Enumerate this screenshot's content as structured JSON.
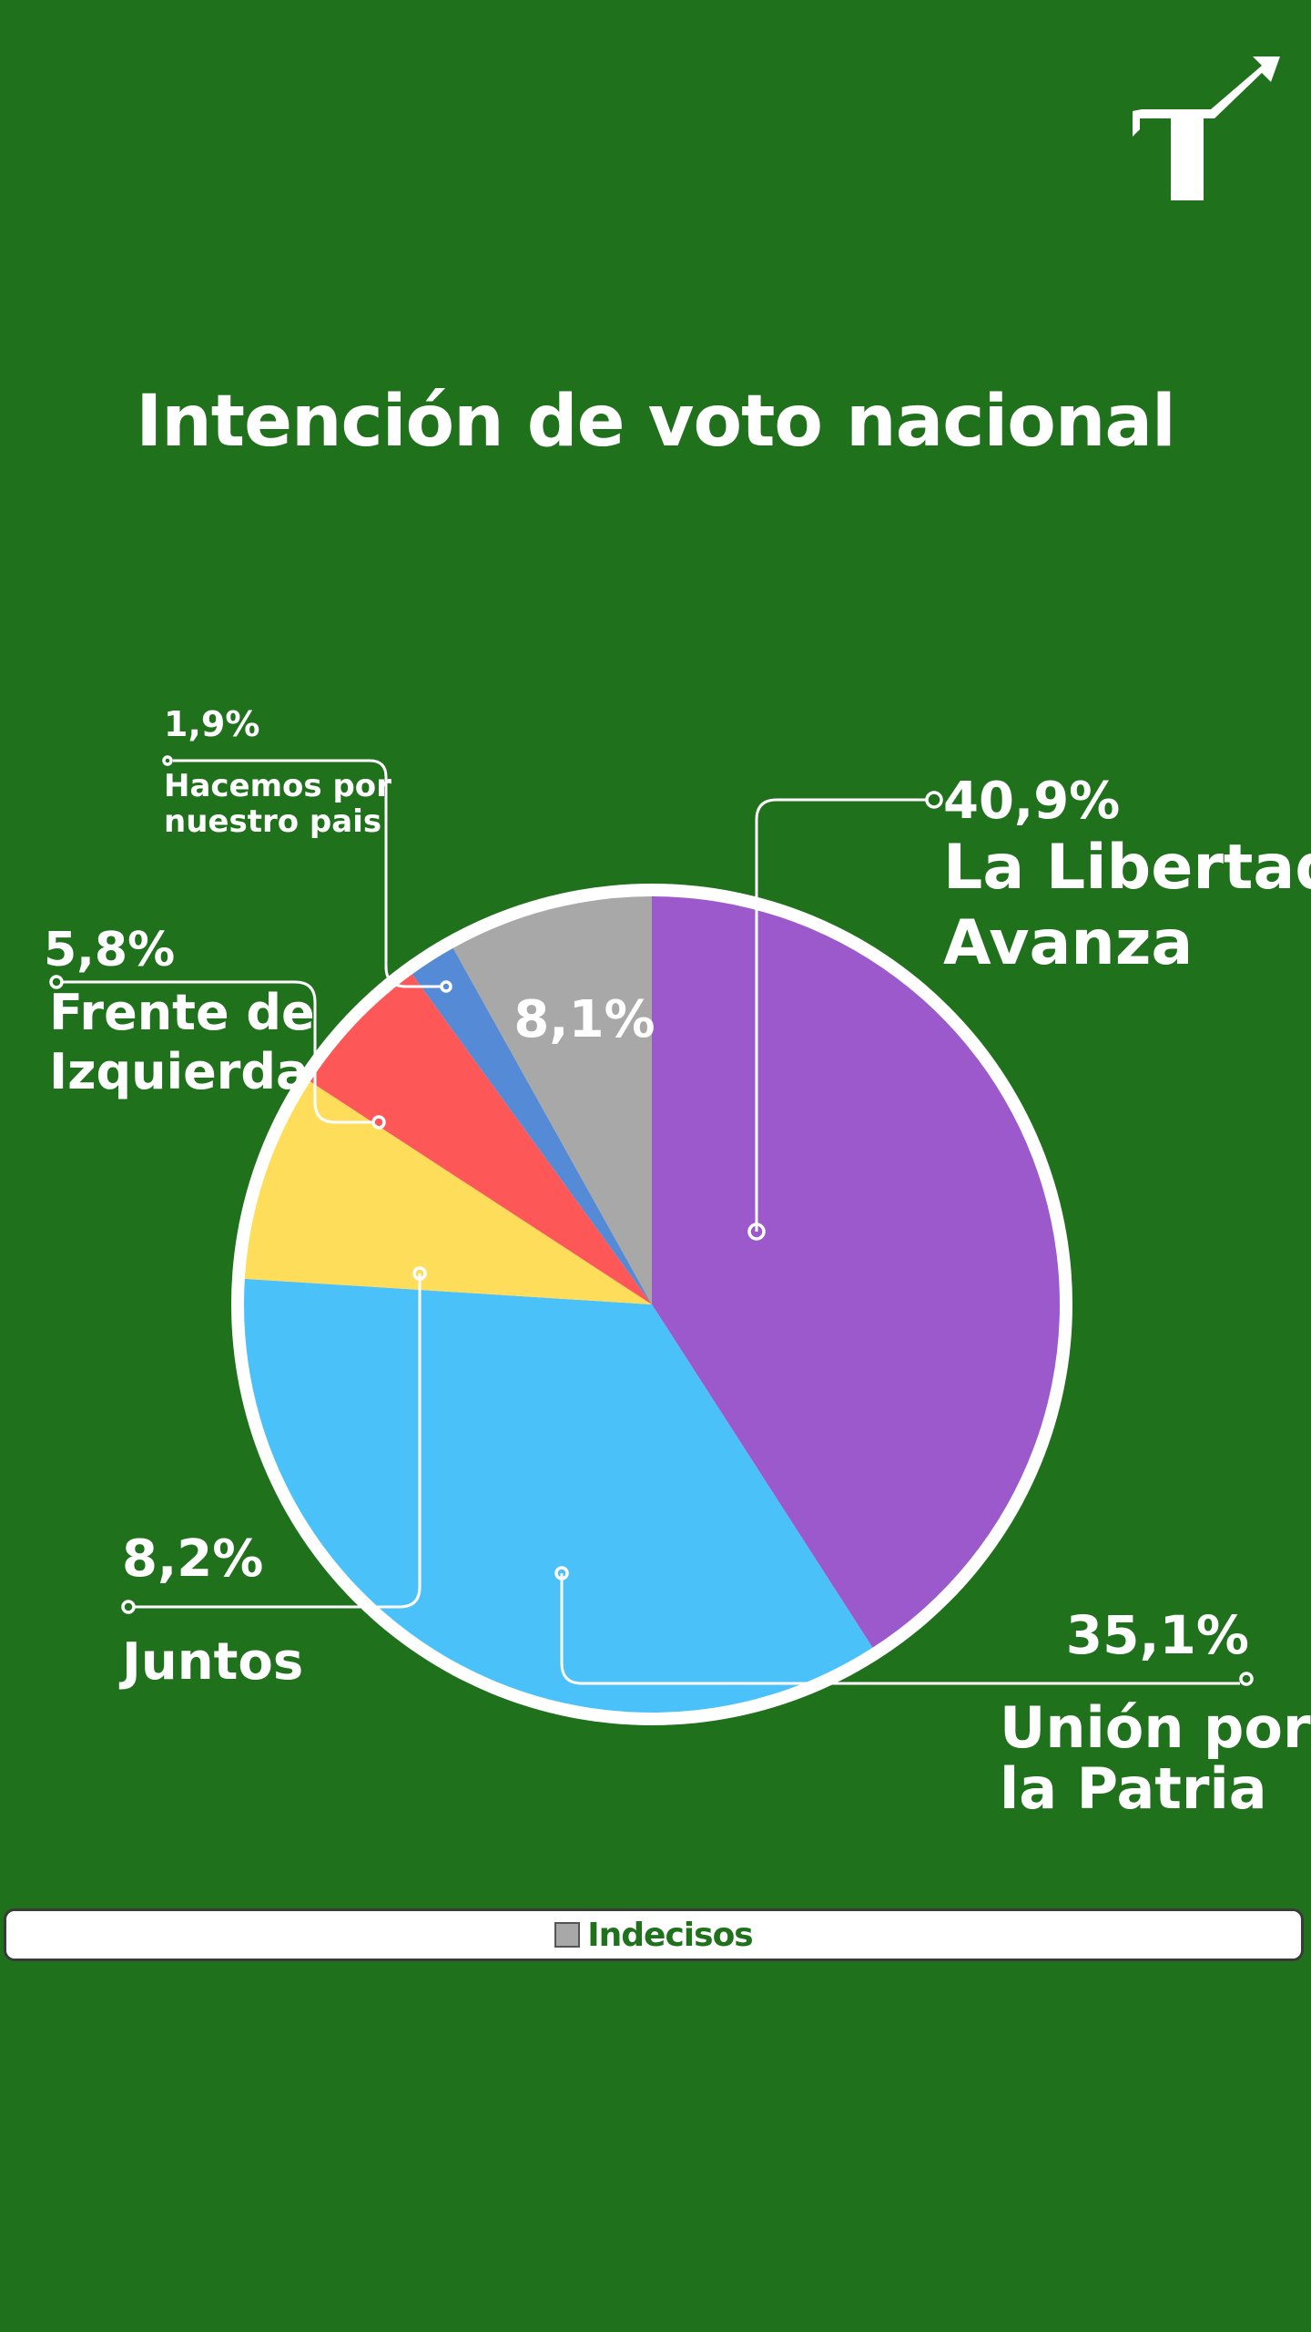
{
  "header": {
    "logo_icon": "turn-right-arrow-icon"
  },
  "chart_data": {
    "type": "pie",
    "title": "Intención de voto nacional",
    "slices": [
      {
        "name": "La Libertad Avanza",
        "label_lines": [
          "La Libertad",
          "Avanza"
        ],
        "value": 40.9,
        "value_label": "40,9%",
        "color": "#9b59cc"
      },
      {
        "name": "Unión por la Patria",
        "label_lines": [
          "Unión por",
          "la Patria"
        ],
        "value": 35.1,
        "value_label": "35,1%",
        "color": "#4bc1fa"
      },
      {
        "name": "Juntos",
        "label_lines": [
          "Juntos"
        ],
        "value": 8.2,
        "value_label": "8,2%",
        "color": "#fedd5b"
      },
      {
        "name": "Frente de Izquierda",
        "label_lines": [
          "Frente de",
          "Izquierda"
        ],
        "value": 5.8,
        "value_label": "5,8%",
        "color": "#fe5757"
      },
      {
        "name": "Hacemos por nuestro pais",
        "label_lines": [
          "Hacemos por",
          "nuestro pais"
        ],
        "value": 1.9,
        "value_label": "1,9%",
        "color": "#548ad6"
      },
      {
        "name": "Indecisos",
        "label_lines": [],
        "value": 8.1,
        "value_label": "8,1%",
        "color": "#a8a8a8"
      }
    ],
    "legend": {
      "placement": "bottom",
      "entries": [
        {
          "name": "Indecisos",
          "color": "#a8a8a8"
        }
      ]
    }
  },
  "colors": {
    "background": "#1f711c",
    "text": "#ffffff",
    "legend_text": "#1f711c"
  }
}
